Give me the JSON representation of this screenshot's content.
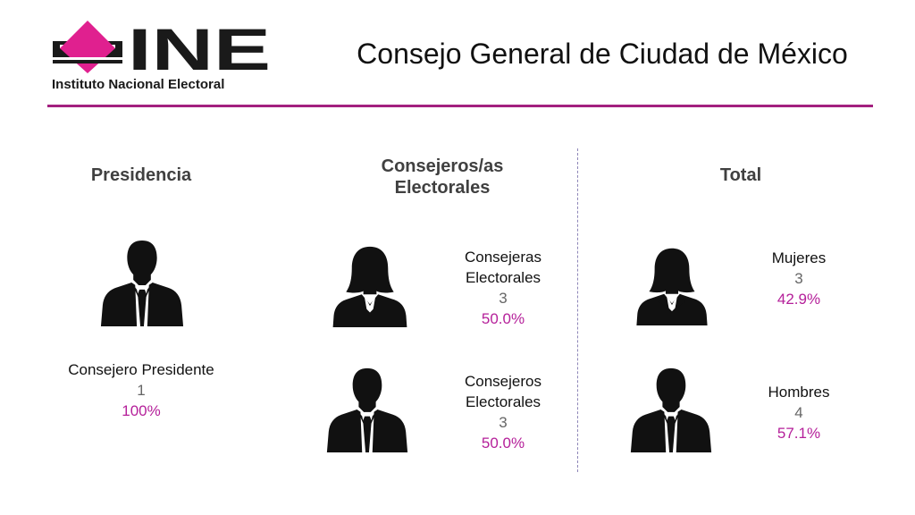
{
  "header": {
    "logo": {
      "wordmark": "INE",
      "full_name": "Instituto Nacional Electoral",
      "brand_color": "#e0208f"
    },
    "title": "Consejo General de Ciudad de México",
    "rule_color": "#a3207f"
  },
  "sections": {
    "presidencia": {
      "heading": "Presidencia",
      "items": [
        {
          "icon": "male-silhouette-icon",
          "label": "Consejero Presidente",
          "count": "1",
          "percent": "100%"
        }
      ]
    },
    "consejeros": {
      "heading_line1": "Consejeros/as",
      "heading_line2": "Electorales",
      "items": [
        {
          "icon": "female-silhouette-icon",
          "label_line1": "Consejeras",
          "label_line2": "Electorales",
          "count": "3",
          "percent": "50.0%"
        },
        {
          "icon": "male-silhouette-icon",
          "label_line1": "Consejeros",
          "label_line2": "Electorales",
          "count": "3",
          "percent": "50.0%"
        }
      ]
    },
    "total": {
      "heading": "Total",
      "items": [
        {
          "icon": "female-silhouette-icon",
          "label": "Mujeres",
          "count": "3",
          "percent": "42.9%"
        },
        {
          "icon": "male-silhouette-icon",
          "label": "Hombres",
          "count": "4",
          "percent": "57.1%"
        }
      ]
    }
  },
  "colors": {
    "accent": "#b5209a",
    "heading": "#404040",
    "count": "#666666"
  }
}
